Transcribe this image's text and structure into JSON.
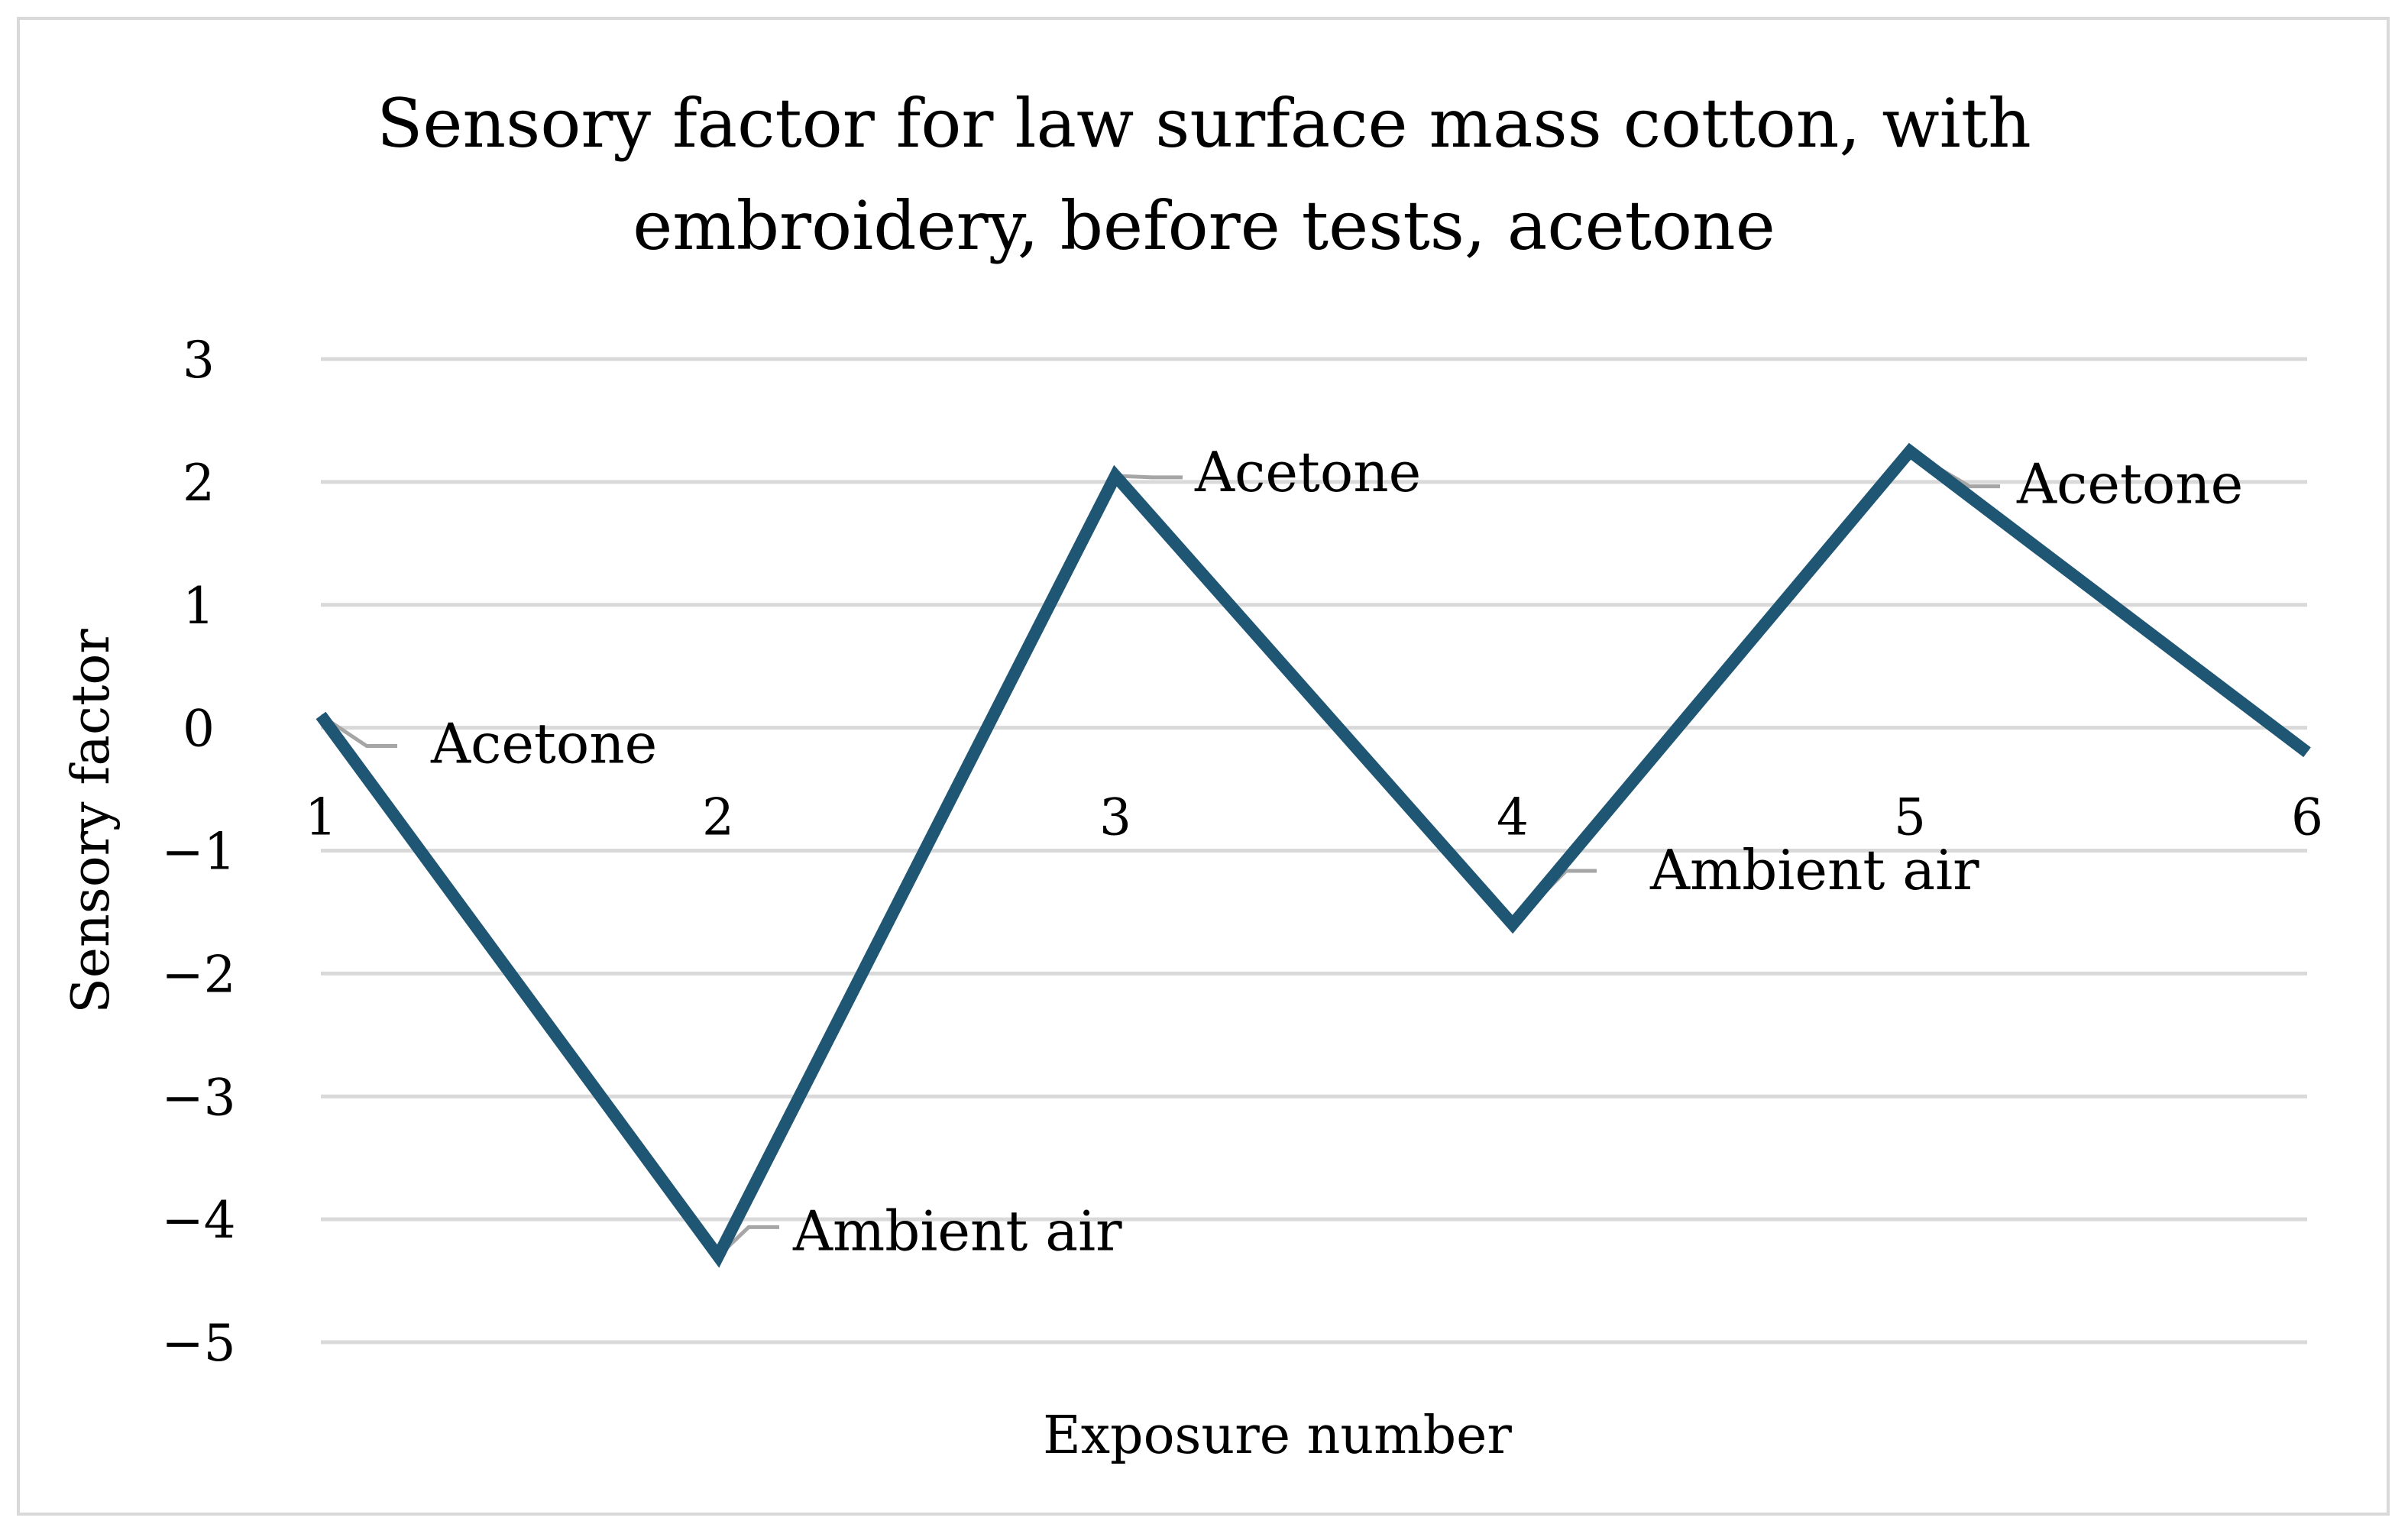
{
  "chart_data": {
    "type": "line",
    "title": "Sensory factor for law surface mass cotton, with embroidery, before tests, acetone",
    "title_lines": [
      "Sensory factor for law surface mass cotton, with",
      "embroidery, before tests, acetone"
    ],
    "xlabel": "Exposure number",
    "ylabel": "Sensory factor",
    "x": [
      1,
      2,
      3,
      4,
      5,
      6
    ],
    "x_tick_labels": [
      "1",
      "2",
      "3",
      "4",
      "5",
      "6"
    ],
    "y_ticks": [
      3,
      2,
      1,
      0,
      -1,
      -2,
      -3,
      -4,
      -5
    ],
    "y_tick_labels": [
      "3",
      "2",
      "1",
      "0",
      "−1",
      "−2",
      "−3",
      "−4",
      "−5"
    ],
    "ylim": [
      -5,
      3
    ],
    "grid": true,
    "series": [
      {
        "values": [
          0.1,
          -4.3,
          2.05,
          -1.6,
          2.25,
          -0.2
        ],
        "color": "#1f5673",
        "point_labels": [
          "Acetone",
          "Ambient air",
          "Acetone",
          "Ambient air",
          "Acetone",
          ""
        ]
      }
    ]
  }
}
